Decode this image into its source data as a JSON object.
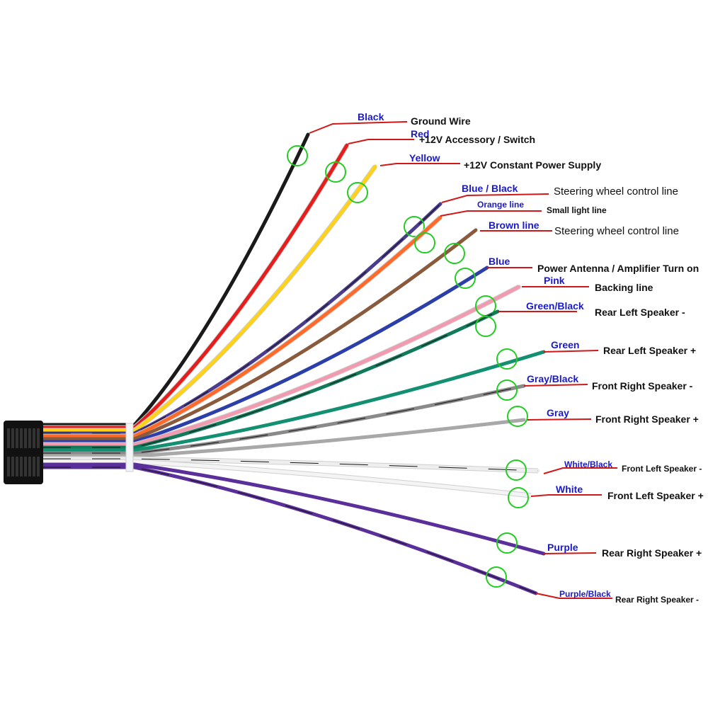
{
  "wires": [
    {
      "color_label": "Black",
      "function": "Ground Wire",
      "hex": "#1a1a1a"
    },
    {
      "color_label": "Red",
      "function": "+12V  Accessory / Switch",
      "hex": "#e51d1d"
    },
    {
      "color_label": "Yellow",
      "function": "+12V Constant Power Supply",
      "hex": "#ffd21a"
    },
    {
      "color_label": "Blue  / Black",
      "function": "Steering wheel control line",
      "hex": "#4a3c8c"
    },
    {
      "color_label": "Orange line",
      "function": "Small light line",
      "hex": "#ff6a2a"
    },
    {
      "color_label": "Brown line",
      "function": "Steering wheel control line",
      "hex": "#8a5a3c"
    },
    {
      "color_label": "Blue",
      "function": "Power Antenna / Amplifier Turn on",
      "hex": "#2c3ea8"
    },
    {
      "color_label": "Pink",
      "function": "Backing line",
      "hex": "#f29ab0"
    },
    {
      "color_label": "Green/Black",
      "function": "Rear Left Speaker -",
      "hex": "#107a5a"
    },
    {
      "color_label": "Green",
      "function": "Rear Left Speaker +",
      "hex": "#139072"
    },
    {
      "color_label": "Gray/Black",
      "function": "Front Right Speaker -",
      "hex": "#8a8a8a"
    },
    {
      "color_label": "Gray",
      "function": "Front Right Speaker +",
      "hex": "#a8a8a8"
    },
    {
      "color_label": "White/Black",
      "function": "Front Left Speaker -",
      "hex": "#eeeeee"
    },
    {
      "color_label": "White",
      "function": "Front Left Speaker +",
      "hex": "#f4f4f4"
    },
    {
      "color_label": "Purple",
      "function": "Rear Right Speaker +",
      "hex": "#5b2f9a"
    },
    {
      "color_label": "Purple/Black",
      "function": "Rear Right Speaker -",
      "hex": "#5b2f9a"
    }
  ],
  "colors": {
    "leader_line": "#d01818",
    "color_label": "#1a1acc",
    "marker_circle": "#22cc22",
    "connector": "#111111"
  }
}
